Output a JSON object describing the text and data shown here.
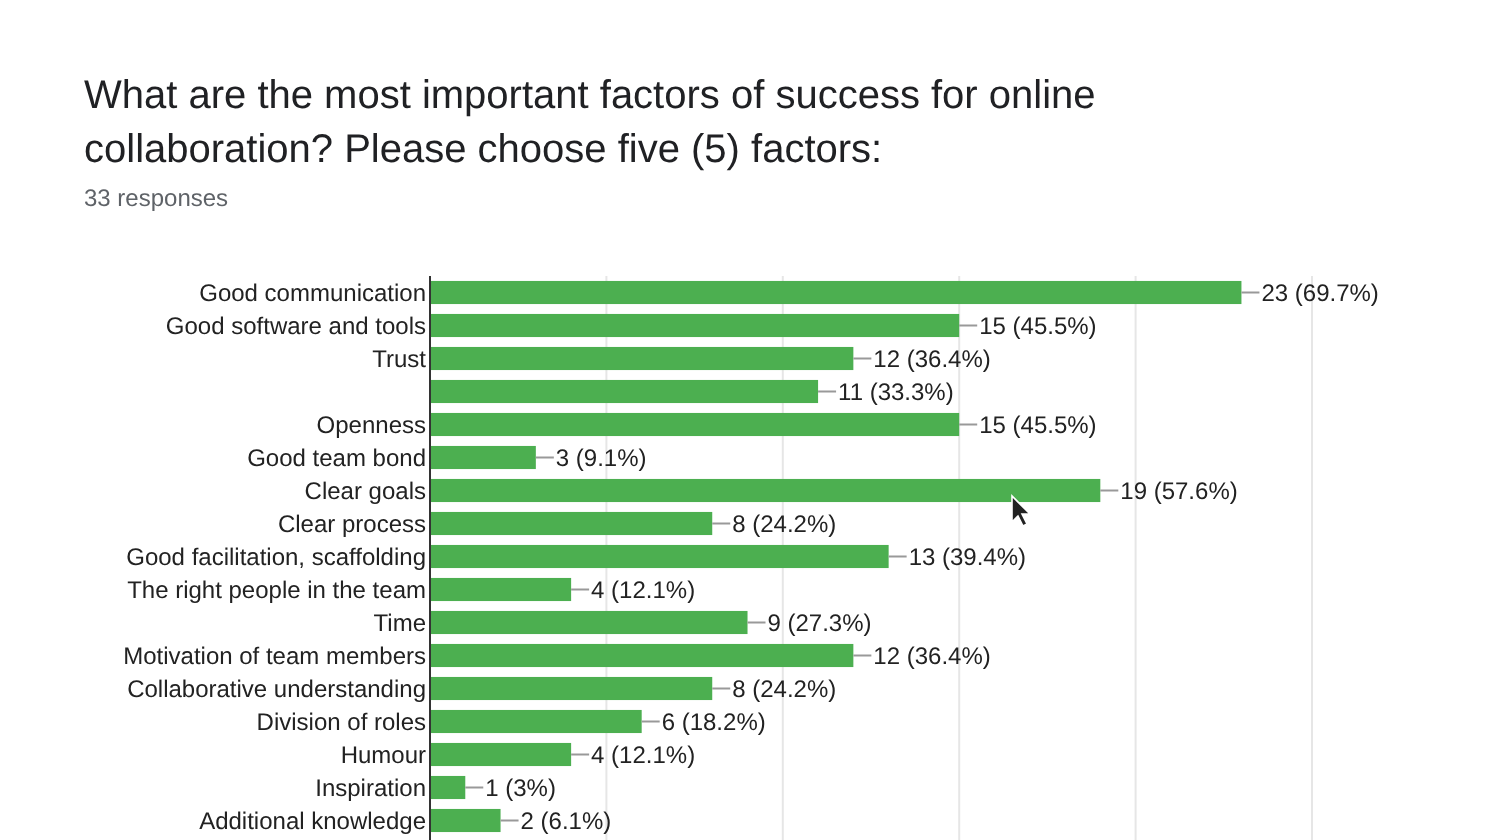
{
  "chart_data": {
    "type": "bar",
    "orientation": "horizontal",
    "title": "What are the most important factors of success for online collaboration? Please choose five (5) factors:",
    "subtitle": "33 responses",
    "categories": [
      "Good communication",
      "Good software and tools",
      "Trust",
      null,
      "Openness",
      "Good team bond",
      "Clear goals",
      "Clear process",
      "Good facilitation, scaffolding",
      "The right people in the team",
      "Time",
      "Motivation of team members",
      "Collaborative understanding",
      "Division of roles",
      "Humour",
      "Inspiration",
      "Additional knowledge"
    ],
    "values": [
      23,
      15,
      12,
      11,
      15,
      3,
      19,
      8,
      13,
      4,
      9,
      12,
      8,
      6,
      4,
      1,
      2
    ],
    "value_labels": [
      "23 (69.7%)",
      "15 (45.5%)",
      "12 (36.4%)",
      "11 (33.3%)",
      "15 (45.5%)",
      "3 (9.1%)",
      "19 (57.6%)",
      "8 (24.2%)",
      "13 (39.4%)",
      "4 (12.1%)",
      "9 (27.3%)",
      "12 (36.4%)",
      "8 (24.2%)",
      "6 (18.2%)",
      "4 (12.1%)",
      "1 (3%)",
      "2 (6.1%)"
    ],
    "color": "#4caf50",
    "xlim": [
      0,
      25
    ],
    "xticks": [
      {
        "value": 0,
        "label": null
      },
      {
        "value": 5,
        "label": null
      },
      {
        "value": 10,
        "label": null
      },
      {
        "value": 15,
        "label": null
      },
      {
        "value": 20,
        "label": null
      },
      {
        "value": 25,
        "label": null
      }
    ],
    "grid": "x",
    "tick_labels": "y"
  }
}
